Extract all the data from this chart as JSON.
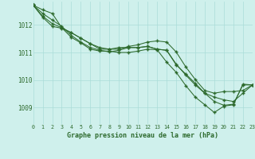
{
  "background_color": "#cff0ec",
  "grid_color": "#aaddd8",
  "line_color": "#2d6a2d",
  "marker_color": "#2d6a2d",
  "title": "Graphe pression niveau de la mer (hPa)",
  "xlim": [
    0,
    23
  ],
  "ylim": [
    1008.4,
    1012.85
  ],
  "yticks": [
    1009,
    1010,
    1011,
    1012
  ],
  "xtick_labels": [
    "0",
    "1",
    "2",
    "3",
    "4",
    "5",
    "6",
    "7",
    "8",
    "9",
    "10",
    "11",
    "12",
    "13",
    "14",
    "15",
    "16",
    "17",
    "18",
    "19",
    "20",
    "21",
    "22",
    "23"
  ],
  "series": [
    [
      1012.72,
      1012.55,
      1012.42,
      1011.9,
      1011.55,
      1011.35,
      1011.12,
      1011.05,
      1011.05,
      1011.0,
      1011.0,
      1011.05,
      1011.12,
      1011.1,
      1010.65,
      1010.28,
      1009.8,
      1009.38,
      1009.1,
      1008.82,
      1009.05,
      1009.1,
      1009.85,
      1009.82
    ],
    [
      1012.72,
      1012.42,
      1012.18,
      1011.95,
      1011.62,
      1011.38,
      1011.18,
      1011.08,
      1011.02,
      1011.08,
      1011.18,
      1011.18,
      1011.22,
      1011.12,
      1011.08,
      1010.55,
      1010.22,
      1009.88,
      1009.52,
      1009.22,
      1009.08,
      1009.12,
      1009.82,
      1009.82
    ],
    [
      1012.72,
      1012.32,
      1012.05,
      1011.9,
      1011.72,
      1011.52,
      1011.32,
      1011.12,
      1011.12,
      1011.18,
      1011.18,
      1011.18,
      1011.22,
      1011.12,
      1011.08,
      1010.58,
      1010.18,
      1009.82,
      1009.52,
      1009.38,
      1009.28,
      1009.22,
      1009.52,
      1009.82
    ],
    [
      1012.72,
      1012.28,
      1011.95,
      1011.88,
      1011.72,
      1011.52,
      1011.32,
      1011.18,
      1011.12,
      1011.12,
      1011.22,
      1011.28,
      1011.38,
      1011.42,
      1011.38,
      1011.02,
      1010.48,
      1010.02,
      1009.62,
      1009.52,
      1009.58,
      1009.58,
      1009.62,
      1009.82
    ]
  ]
}
